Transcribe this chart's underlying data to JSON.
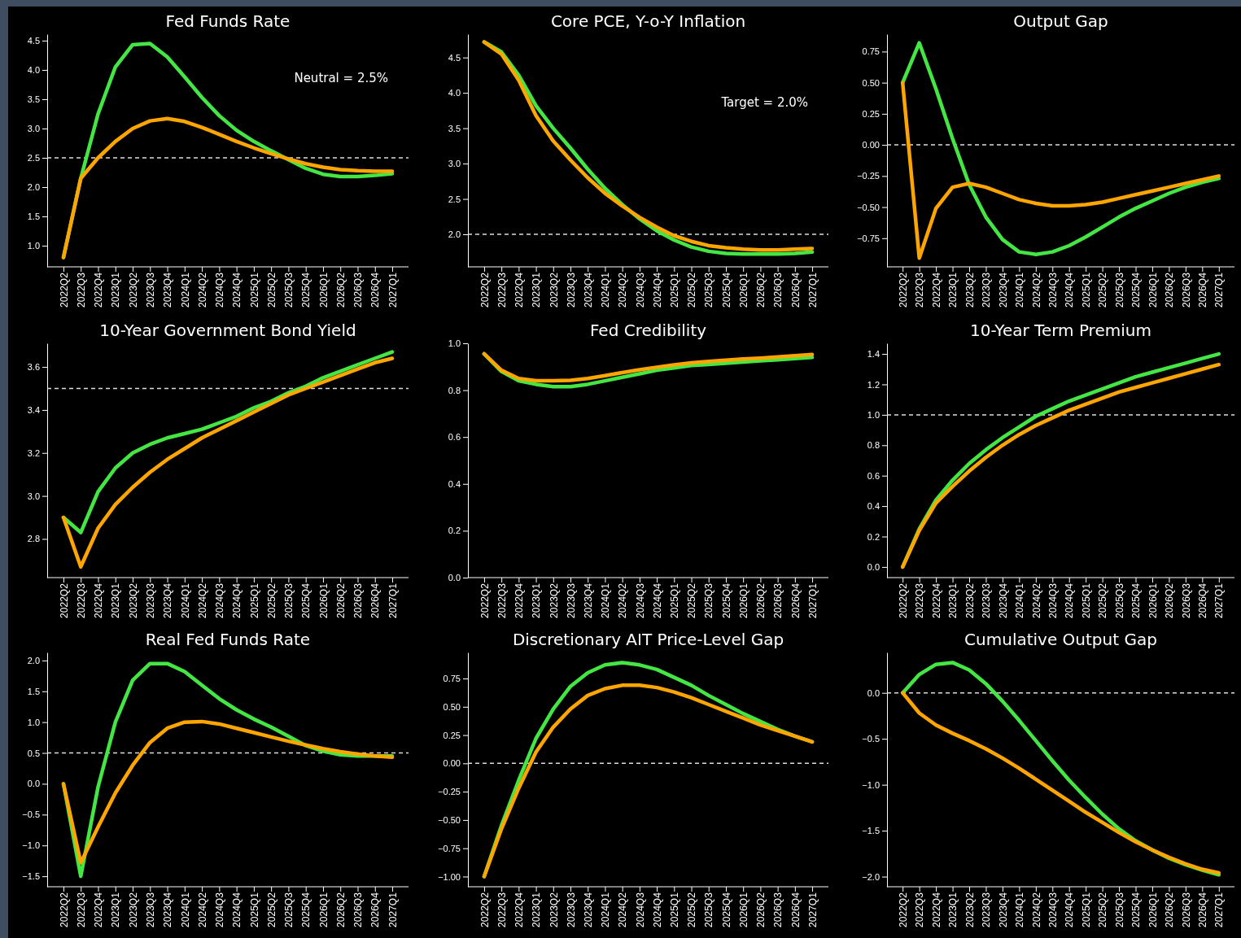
{
  "chart_data": [
    {
      "type": "line",
      "title": "Fed Funds Rate",
      "categories": [
        "2022Q2",
        "2022Q3",
        "2022Q4",
        "2023Q1",
        "2023Q2",
        "2023Q3",
        "2023Q4",
        "2024Q1",
        "2024Q2",
        "2024Q3",
        "2024Q4",
        "2025Q1",
        "2025Q2",
        "2025Q3",
        "2025Q4",
        "2026Q1",
        "2026Q2",
        "2026Q3",
        "2026Q4",
        "2027Q1"
      ],
      "ylim": [
        0.64,
        4.61
      ],
      "yticks": [
        {
          "value": 1,
          "label": "1.0"
        },
        1.5,
        {
          "value": 2,
          "label": "2.0"
        },
        2.5,
        {
          "value": 3,
          "label": "3.0"
        },
        3.5,
        {
          "value": 4,
          "label": "4.0"
        },
        4.5
      ],
      "grid": false,
      "series": [
        {
          "color": "#44e644",
          "values": [
            0.8,
            2.15,
            3.25,
            4.05,
            4.43,
            4.45,
            4.22,
            3.88,
            3.53,
            3.22,
            2.97,
            2.78,
            2.62,
            2.47,
            2.32,
            2.22,
            2.18,
            2.18,
            2.2,
            2.23
          ]
        },
        {
          "color": "#ffa500",
          "values": [
            0.8,
            2.15,
            2.5,
            2.78,
            3.0,
            3.13,
            3.17,
            3.12,
            3.02,
            2.9,
            2.78,
            2.67,
            2.57,
            2.48,
            2.4,
            2.34,
            2.3,
            2.28,
            2.27,
            2.27
          ]
        }
      ],
      "ref_lines": [
        {
          "axis": "y",
          "value": 2.5,
          "label": "Neutral = 2.5%",
          "color": "#dddddd",
          "line_style": "dashed"
        }
      ]
    },
    {
      "type": "line",
      "title": "Core PCE, Y-o-Y Inflation",
      "categories": [
        "2022Q2",
        "2022Q3",
        "2022Q4",
        "2023Q1",
        "2023Q2",
        "2023Q3",
        "2023Q4",
        "2024Q1",
        "2024Q2",
        "2024Q3",
        "2024Q4",
        "2025Q1",
        "2025Q2",
        "2025Q3",
        "2025Q4",
        "2026Q1",
        "2026Q2",
        "2026Q3",
        "2026Q4",
        "2027Q1"
      ],
      "ylim": [
        1.54,
        4.83
      ],
      "yticks": [
        {
          "value": 2,
          "label": "2.0"
        },
        2.5,
        {
          "value": 3,
          "label": "3.0"
        },
        3.5,
        {
          "value": 4,
          "label": "4.0"
        },
        4.5
      ],
      "grid": false,
      "series": [
        {
          "color": "#44e644",
          "values": [
            4.72,
            4.58,
            4.25,
            3.82,
            3.5,
            3.22,
            2.92,
            2.65,
            2.42,
            2.22,
            2.05,
            1.92,
            1.82,
            1.76,
            1.73,
            1.72,
            1.72,
            1.72,
            1.73,
            1.75
          ]
        },
        {
          "color": "#ffa500",
          "values": [
            4.72,
            4.55,
            4.18,
            3.68,
            3.32,
            3.05,
            2.8,
            2.58,
            2.4,
            2.24,
            2.1,
            1.98,
            1.9,
            1.84,
            1.81,
            1.79,
            1.78,
            1.78,
            1.79,
            1.8
          ]
        }
      ],
      "ref_lines": [
        {
          "axis": "y",
          "value": 2.0,
          "label": "Target = 2.0%",
          "color": "#dddddd",
          "line_style": "dashed"
        }
      ]
    },
    {
      "type": "line",
      "title": "Output Gap",
      "categories": [
        "2022Q2",
        "2022Q3",
        "2022Q4",
        "2023Q1",
        "2023Q2",
        "2023Q3",
        "2023Q4",
        "2024Q1",
        "2024Q2",
        "2024Q3",
        "2024Q4",
        "2025Q1",
        "2025Q2",
        "2025Q3",
        "2025Q4",
        "2026Q1",
        "2026Q2",
        "2026Q3",
        "2026Q4",
        "2027Q1"
      ],
      "ylim": [
        -0.98,
        0.89
      ],
      "yticks": [
        {
          "value": -0.75,
          "label": "−0.75"
        },
        {
          "value": -0.5,
          "label": "−0.50"
        },
        {
          "value": -0.25,
          "label": "−0.25"
        },
        {
          "value": 0,
          "label": "0.00"
        },
        0.25,
        {
          "value": 0.5,
          "label": "0.50"
        },
        0.75
      ],
      "grid": false,
      "series": [
        {
          "color": "#44e644",
          "values": [
            0.5,
            0.82,
            0.45,
            0.05,
            -0.32,
            -0.58,
            -0.76,
            -0.86,
            -0.88,
            -0.86,
            -0.81,
            -0.74,
            -0.66,
            -0.58,
            -0.51,
            -0.45,
            -0.39,
            -0.34,
            -0.3,
            -0.27
          ]
        },
        {
          "color": "#ffa500",
          "values": [
            0.5,
            -0.91,
            -0.51,
            -0.34,
            -0.31,
            -0.34,
            -0.39,
            -0.44,
            -0.47,
            -0.49,
            -0.49,
            -0.48,
            -0.46,
            -0.43,
            -0.4,
            -0.37,
            -0.34,
            -0.31,
            -0.28,
            -0.25
          ]
        }
      ],
      "ref_lines": [
        {
          "axis": "y",
          "value": 0,
          "color": "#dddddd",
          "line_style": "dashed"
        }
      ]
    },
    {
      "type": "line",
      "title": "10-Year Government Bond Yield",
      "categories": [
        "2022Q2",
        "2022Q3",
        "2022Q4",
        "2023Q1",
        "2023Q2",
        "2023Q3",
        "2023Q4",
        "2024Q1",
        "2024Q2",
        "2024Q3",
        "2024Q4",
        "2025Q1",
        "2025Q2",
        "2025Q3",
        "2025Q4",
        "2026Q1",
        "2026Q2",
        "2026Q3",
        "2026Q4",
        "2027Q1"
      ],
      "ylim": [
        2.62,
        3.71
      ],
      "yticks": [
        2.8,
        {
          "value": 3,
          "label": "3.0"
        },
        3.2,
        3.4,
        3.6
      ],
      "grid": false,
      "series": [
        {
          "color": "#44e644",
          "values": [
            2.9,
            2.83,
            3.02,
            3.13,
            3.2,
            3.24,
            3.27,
            3.29,
            3.31,
            3.34,
            3.37,
            3.41,
            3.44,
            3.48,
            3.51,
            3.55,
            3.58,
            3.61,
            3.64,
            3.67
          ]
        },
        {
          "color": "#ffa500",
          "values": [
            2.9,
            2.67,
            2.85,
            2.96,
            3.04,
            3.11,
            3.17,
            3.22,
            3.27,
            3.31,
            3.35,
            3.39,
            3.43,
            3.47,
            3.5,
            3.53,
            3.56,
            3.59,
            3.62,
            3.64
          ]
        }
      ],
      "ref_lines": [
        {
          "axis": "y",
          "value": 3.5,
          "color": "#dddddd",
          "line_style": "dashed"
        }
      ]
    },
    {
      "type": "line",
      "title": "Fed Credibility",
      "categories": [
        "2022Q2",
        "2022Q3",
        "2022Q4",
        "2023Q1",
        "2023Q2",
        "2023Q3",
        "2023Q4",
        "2024Q1",
        "2024Q2",
        "2024Q3",
        "2024Q4",
        "2025Q1",
        "2025Q2",
        "2025Q3",
        "2025Q4",
        "2026Q1",
        "2026Q2",
        "2026Q3",
        "2026Q4",
        "2027Q1"
      ],
      "ylim": [
        0,
        1
      ],
      "yticks": [
        {
          "value": 0,
          "label": "0.0"
        },
        0.2,
        0.4,
        0.6,
        0.8,
        {
          "value": 1,
          "label": "1.0"
        }
      ],
      "grid": false,
      "series": [
        {
          "color": "#44e644",
          "values": [
            0.955,
            0.88,
            0.84,
            0.825,
            0.815,
            0.815,
            0.825,
            0.84,
            0.855,
            0.87,
            0.885,
            0.895,
            0.905,
            0.91,
            0.915,
            0.92,
            0.925,
            0.93,
            0.935,
            0.94
          ]
        },
        {
          "color": "#ffa500",
          "values": [
            0.955,
            0.885,
            0.85,
            0.84,
            0.84,
            0.842,
            0.85,
            0.862,
            0.875,
            0.887,
            0.898,
            0.908,
            0.917,
            0.923,
            0.928,
            0.933,
            0.937,
            0.942,
            0.947,
            0.952
          ]
        }
      ]
    },
    {
      "type": "line",
      "title": "10-Year Term Premium",
      "categories": [
        "2022Q2",
        "2022Q3",
        "2022Q4",
        "2023Q1",
        "2023Q2",
        "2023Q3",
        "2023Q4",
        "2024Q1",
        "2024Q2",
        "2024Q3",
        "2024Q4",
        "2025Q1",
        "2025Q2",
        "2025Q3",
        "2025Q4",
        "2026Q1",
        "2026Q2",
        "2026Q3",
        "2026Q4",
        "2027Q1"
      ],
      "ylim": [
        -0.07,
        1.47
      ],
      "yticks": [
        {
          "value": 0,
          "label": "0.0"
        },
        0.2,
        0.4,
        0.6,
        0.8,
        {
          "value": 1,
          "label": "1.0"
        },
        1.2,
        1.4
      ],
      "grid": false,
      "series": [
        {
          "color": "#44e644",
          "values": [
            0.0,
            0.25,
            0.44,
            0.57,
            0.68,
            0.77,
            0.85,
            0.92,
            0.99,
            1.04,
            1.09,
            1.13,
            1.17,
            1.21,
            1.25,
            1.28,
            1.31,
            1.34,
            1.37,
            1.4
          ]
        },
        {
          "color": "#ffa500",
          "values": [
            0.0,
            0.24,
            0.42,
            0.53,
            0.63,
            0.72,
            0.8,
            0.87,
            0.93,
            0.98,
            1.03,
            1.07,
            1.11,
            1.15,
            1.18,
            1.21,
            1.24,
            1.27,
            1.3,
            1.33
          ]
        }
      ],
      "ref_lines": [
        {
          "axis": "y",
          "value": 1.0,
          "color": "#dddddd",
          "line_style": "dashed"
        }
      ]
    },
    {
      "type": "line",
      "title": "Real Fed Funds Rate",
      "categories": [
        "2022Q2",
        "2022Q3",
        "2022Q4",
        "2023Q1",
        "2023Q2",
        "2023Q3",
        "2023Q4",
        "2024Q1",
        "2024Q2",
        "2024Q3",
        "2024Q4",
        "2025Q1",
        "2025Q2",
        "2025Q3",
        "2025Q4",
        "2026Q1",
        "2026Q2",
        "2026Q3",
        "2026Q4",
        "2027Q1"
      ],
      "ylim": [
        -1.67,
        2.13
      ],
      "yticks": [
        {
          "value": -1.5,
          "label": "−1.5"
        },
        {
          "value": -1,
          "label": "−1.0"
        },
        {
          "value": -0.5,
          "label": "−0.5"
        },
        {
          "value": 0,
          "label": "0.0"
        },
        0.5,
        {
          "value": 1,
          "label": "1.0"
        },
        1.5,
        {
          "value": 2,
          "label": "2.0"
        }
      ],
      "grid": false,
      "series": [
        {
          "color": "#44e644",
          "values": [
            0.0,
            -1.5,
            -0.05,
            1.0,
            1.68,
            1.95,
            1.95,
            1.82,
            1.6,
            1.38,
            1.2,
            1.05,
            0.92,
            0.77,
            0.62,
            0.53,
            0.47,
            0.45,
            0.45,
            0.45
          ]
        },
        {
          "color": "#ffa500",
          "values": [
            0.0,
            -1.28,
            -0.7,
            -0.15,
            0.3,
            0.67,
            0.9,
            1.0,
            1.01,
            0.97,
            0.9,
            0.83,
            0.76,
            0.69,
            0.63,
            0.57,
            0.52,
            0.48,
            0.45,
            0.43
          ]
        }
      ],
      "ref_lines": [
        {
          "axis": "y",
          "value": 0.5,
          "color": "#dddddd",
          "line_style": "dashed"
        }
      ]
    },
    {
      "type": "line",
      "title": "Discretionary AIT Price-Level Gap",
      "categories": [
        "2022Q2",
        "2022Q3",
        "2022Q4",
        "2023Q1",
        "2023Q2",
        "2023Q3",
        "2023Q4",
        "2024Q1",
        "2024Q2",
        "2024Q3",
        "2024Q4",
        "2025Q1",
        "2025Q2",
        "2025Q3",
        "2025Q4",
        "2026Q1",
        "2026Q2",
        "2026Q3",
        "2026Q4",
        "2027Q1"
      ],
      "ylim": [
        -1.09,
        0.98
      ],
      "yticks": [
        {
          "value": -1,
          "label": "−1.00"
        },
        {
          "value": -0.75,
          "label": "−0.75"
        },
        {
          "value": -0.5,
          "label": "−0.50"
        },
        {
          "value": -0.25,
          "label": "−0.25"
        },
        {
          "value": 0,
          "label": "0.00"
        },
        0.25,
        {
          "value": 0.5,
          "label": "0.50"
        },
        0.75
      ],
      "grid": false,
      "series": [
        {
          "color": "#44e644",
          "values": [
            -1.0,
            -0.55,
            -0.15,
            0.22,
            0.48,
            0.68,
            0.8,
            0.87,
            0.89,
            0.87,
            0.83,
            0.76,
            0.69,
            0.6,
            0.52,
            0.44,
            0.37,
            0.3,
            0.24,
            0.19
          ]
        },
        {
          "color": "#ffa500",
          "values": [
            -1.0,
            -0.58,
            -0.22,
            0.1,
            0.32,
            0.48,
            0.6,
            0.66,
            0.69,
            0.69,
            0.67,
            0.63,
            0.58,
            0.52,
            0.46,
            0.4,
            0.34,
            0.29,
            0.24,
            0.19
          ]
        }
      ],
      "ref_lines": [
        {
          "axis": "y",
          "value": 0,
          "color": "#dddddd",
          "line_style": "dashed"
        }
      ]
    },
    {
      "type": "line",
      "title": "Cumulative Output Gap",
      "categories": [
        "2022Q2",
        "2022Q3",
        "2022Q4",
        "2023Q1",
        "2023Q2",
        "2023Q3",
        "2023Q4",
        "2024Q1",
        "2024Q2",
        "2024Q3",
        "2024Q4",
        "2025Q1",
        "2025Q2",
        "2025Q3",
        "2025Q4",
        "2026Q1",
        "2026Q2",
        "2026Q3",
        "2026Q4",
        "2027Q1"
      ],
      "ylim": [
        -2.11,
        0.44
      ],
      "yticks": [
        {
          "value": -2,
          "label": "−2.0"
        },
        {
          "value": -1.5,
          "label": "−1.5"
        },
        {
          "value": -1,
          "label": "−1.0"
        },
        {
          "value": -0.5,
          "label": "−0.5"
        },
        {
          "value": 0,
          "label": "0.0"
        }
      ],
      "grid": false,
      "series": [
        {
          "color": "#44e644",
          "values": [
            0.0,
            0.2,
            0.31,
            0.33,
            0.25,
            0.1,
            -0.09,
            -0.3,
            -0.52,
            -0.74,
            -0.95,
            -1.14,
            -1.32,
            -1.48,
            -1.61,
            -1.71,
            -1.8,
            -1.87,
            -1.93,
            -1.98
          ]
        },
        {
          "color": "#ffa500",
          "values": [
            0.0,
            -0.22,
            -0.35,
            -0.44,
            -0.52,
            -0.61,
            -0.71,
            -0.82,
            -0.94,
            -1.06,
            -1.18,
            -1.3,
            -1.41,
            -1.52,
            -1.62,
            -1.71,
            -1.79,
            -1.86,
            -1.92,
            -1.96
          ]
        }
      ],
      "ref_lines": [
        {
          "axis": "y",
          "value": 0,
          "color": "#dddddd",
          "line_style": "dashed"
        }
      ]
    }
  ]
}
